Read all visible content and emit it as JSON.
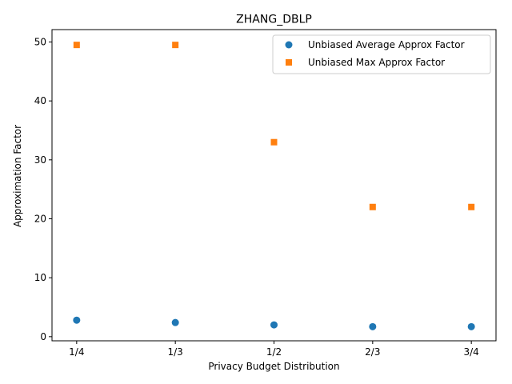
{
  "chart_data": {
    "type": "scatter",
    "title": "ZHANG_DBLP",
    "xlabel": "Privacy Budget Distribution",
    "ylabel": "Approximation Factor",
    "categories": [
      "1/4",
      "1/3",
      "1/2",
      "2/3",
      "3/4"
    ],
    "ylim": [
      -0.7,
      52.1
    ],
    "yticks": [
      0,
      10,
      20,
      30,
      40,
      50
    ],
    "grid": false,
    "legend_position": "top-right",
    "series": [
      {
        "name": "Unbiased Average Approx Factor",
        "marker": "circle",
        "color": "#1f77b4",
        "values": [
          2.8,
          2.4,
          2.0,
          1.7,
          1.7
        ]
      },
      {
        "name": "Unbiased Max Approx Factor",
        "marker": "square",
        "color": "#ff7f0e",
        "values": [
          49.5,
          49.5,
          33.0,
          22.0,
          22.0
        ]
      }
    ]
  }
}
